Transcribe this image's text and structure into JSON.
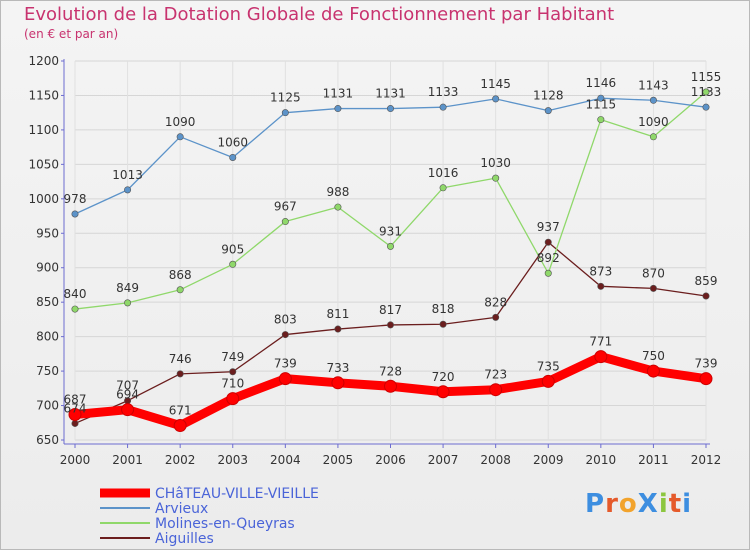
{
  "chart_data": {
    "type": "line",
    "title": "Evolution de la Dotation Globale de Fonctionnement par Habitant",
    "subtitle": "(en € et par an)",
    "x": [
      "2000",
      "2001",
      "2002",
      "2003",
      "2004",
      "2005",
      "2006",
      "2007",
      "2008",
      "2009",
      "2010",
      "2011",
      "2012"
    ],
    "ylim": [
      650,
      1200
    ],
    "yticks": [
      650,
      700,
      750,
      800,
      850,
      900,
      950,
      1000,
      1050,
      1100,
      1150,
      1200
    ],
    "grid": true,
    "legend_position": "bottom-left",
    "series": [
      {
        "name": "CHâTEAU-VILLE-VIEILLE",
        "color": "#ff0000",
        "values": [
          687,
          694,
          671,
          710,
          739,
          733,
          728,
          720,
          723,
          735,
          771,
          750,
          739
        ]
      },
      {
        "name": "Arvieux",
        "color": "#5c93c9",
        "values": [
          978,
          1013,
          1090,
          1060,
          1125,
          1131,
          1131,
          1133,
          1145,
          1128,
          1146,
          1143,
          1133
        ]
      },
      {
        "name": "Molines-en-Queyras",
        "color": "#8fd86a",
        "values": [
          840,
          849,
          868,
          905,
          967,
          988,
          931,
          1016,
          1030,
          892,
          1115,
          1090,
          1155
        ]
      },
      {
        "name": "Aiguilles",
        "color": "#6b1e1e",
        "values": [
          674,
          707,
          746,
          749,
          803,
          811,
          817,
          818,
          828,
          937,
          873,
          870,
          859
        ]
      }
    ]
  },
  "logo": {
    "text": "ProXiti",
    "letters": [
      "P",
      "r",
      "o",
      "X",
      "i",
      "t",
      "i"
    ],
    "colors": [
      "#3d8ee0",
      "#e55a2b",
      "#f2a32c",
      "#3d8ee0",
      "#8cc63f",
      "#e55a2b",
      "#3d8ee0"
    ]
  }
}
